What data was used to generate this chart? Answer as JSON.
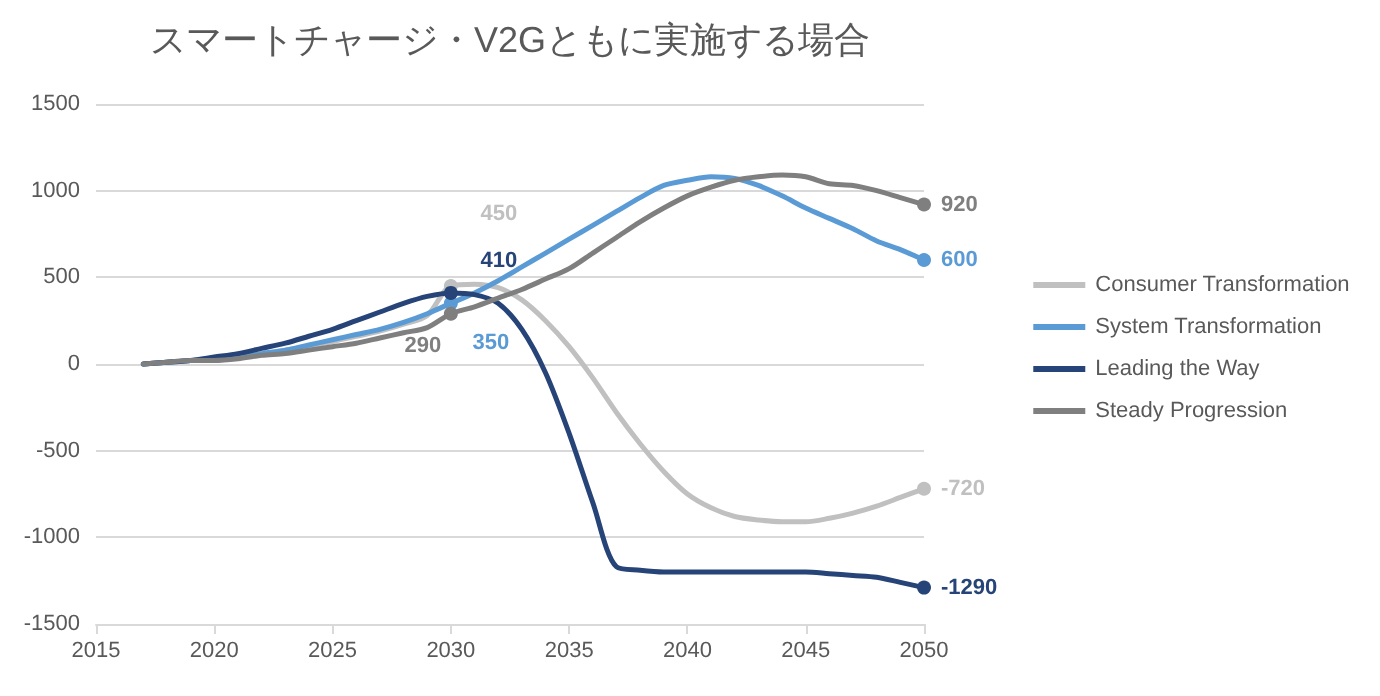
{
  "chart_data": {
    "type": "line",
    "title": "スマートチャージ・V2Gともに実施する場合",
    "x": [
      2017,
      2018,
      2019,
      2020,
      2021,
      2022,
      2023,
      2024,
      2025,
      2026,
      2027,
      2028,
      2029,
      2030,
      2031,
      2032,
      2033,
      2034,
      2035,
      2036,
      2037,
      2038,
      2039,
      2040,
      2041,
      2042,
      2043,
      2044,
      2045,
      2046,
      2047,
      2048,
      2049,
      2050
    ],
    "series": [
      {
        "name": "Consumer Transformation",
        "color": "#c0c0c0",
        "values": [
          0,
          10,
          20,
          30,
          40,
          60,
          80,
          100,
          130,
          160,
          190,
          230,
          280,
          450,
          460,
          440,
          370,
          250,
          100,
          -80,
          -280,
          -460,
          -620,
          -750,
          -830,
          -880,
          -900,
          -910,
          -910,
          -890,
          -860,
          -820,
          -770,
          -720
        ],
        "value_labels": [
          null,
          null,
          null,
          null,
          null,
          null,
          null,
          null,
          null,
          null,
          null,
          null,
          null,
          "450",
          null,
          null,
          null,
          null,
          null,
          null,
          null,
          null,
          null,
          null,
          null,
          null,
          null,
          null,
          null,
          null,
          null,
          null,
          null,
          "-720"
        ]
      },
      {
        "name": "System Transformation",
        "color": "#5b9bd5",
        "values": [
          0,
          10,
          20,
          30,
          40,
          60,
          80,
          110,
          140,
          170,
          200,
          240,
          290,
          350,
          410,
          480,
          560,
          640,
          720,
          800,
          880,
          960,
          1030,
          1060,
          1080,
          1070,
          1030,
          970,
          900,
          840,
          780,
          710,
          660,
          600
        ],
        "value_labels": [
          null,
          null,
          null,
          null,
          null,
          null,
          null,
          null,
          null,
          null,
          null,
          null,
          null,
          "350",
          null,
          null,
          null,
          null,
          null,
          null,
          null,
          null,
          null,
          null,
          null,
          null,
          null,
          null,
          null,
          null,
          null,
          null,
          null,
          "600"
        ]
      },
      {
        "name": "Leading the Way",
        "color": "#264478",
        "values": [
          0,
          10,
          20,
          40,
          60,
          90,
          120,
          160,
          200,
          250,
          300,
          350,
          390,
          410,
          400,
          350,
          200,
          -50,
          -400,
          -800,
          -1170,
          -1190,
          -1200,
          -1200,
          -1200,
          -1200,
          -1200,
          -1200,
          -1200,
          -1210,
          -1220,
          -1230,
          -1260,
          -1290
        ],
        "value_labels": [
          null,
          null,
          null,
          null,
          null,
          null,
          null,
          null,
          null,
          null,
          null,
          null,
          null,
          "410",
          null,
          null,
          null,
          null,
          null,
          null,
          null,
          null,
          null,
          null,
          null,
          null,
          null,
          null,
          null,
          null,
          null,
          null,
          null,
          "-1290"
        ]
      },
      {
        "name": "Steady Progression",
        "color": "#7f7f7f",
        "values": [
          0,
          10,
          20,
          20,
          30,
          50,
          60,
          80,
          100,
          120,
          150,
          180,
          210,
          290,
          330,
          380,
          430,
          490,
          550,
          640,
          730,
          820,
          900,
          970,
          1020,
          1060,
          1080,
          1090,
          1080,
          1040,
          1030,
          1000,
          960,
          920
        ],
        "value_labels": [
          null,
          null,
          null,
          null,
          null,
          null,
          null,
          null,
          null,
          null,
          null,
          null,
          null,
          "290",
          null,
          null,
          null,
          null,
          null,
          null,
          null,
          null,
          null,
          null,
          null,
          null,
          null,
          null,
          null,
          null,
          null,
          null,
          null,
          "920"
        ]
      }
    ],
    "xlim": [
      2015,
      2050
    ],
    "xticks": [
      2015,
      2020,
      2025,
      2030,
      2035,
      2040,
      2045,
      2050
    ],
    "ylim": [
      -1500,
      1500
    ],
    "yticks": [
      -1500,
      -1000,
      -500,
      0,
      500,
      1000,
      1500
    ],
    "grid": "y",
    "legend": "right",
    "line_style": "solid"
  }
}
